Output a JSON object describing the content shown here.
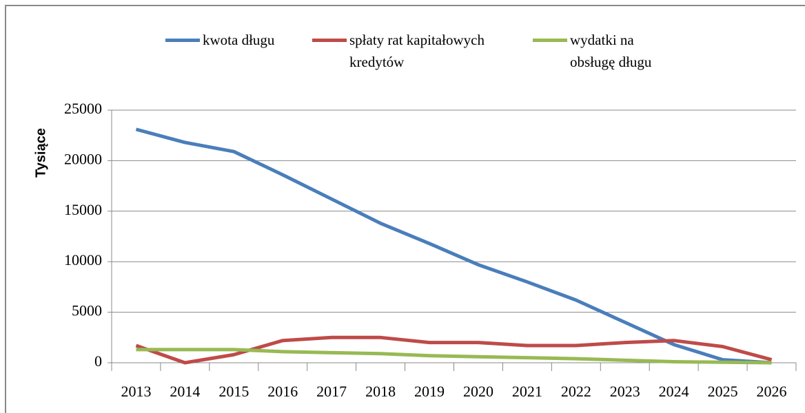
{
  "chart_data": {
    "type": "line",
    "y_label": "Tysiące",
    "categories": [
      "2013",
      "2014",
      "2015",
      "2016",
      "2017",
      "2018",
      "2019",
      "2020",
      "2021",
      "2022",
      "2023",
      "2024",
      "2025",
      "2026"
    ],
    "series": [
      {
        "name": "kwota długu",
        "color": "#4a7ebb",
        "values": [
          23100,
          21800,
          20900,
          18600,
          16200,
          13800,
          11800,
          9700,
          8000,
          6200,
          4000,
          1800,
          300,
          0
        ]
      },
      {
        "name": "spłaty rat kapitałowych kredytów",
        "color": "#be4b48",
        "values": [
          1700,
          0,
          800,
          2200,
          2500,
          2500,
          2000,
          2000,
          1700,
          1700,
          2000,
          2200,
          1600,
          300
        ]
      },
      {
        "name": "wydatki na obsługę długu",
        "color": "#98b954",
        "values": [
          1300,
          1300,
          1300,
          1100,
          1000,
          900,
          700,
          600,
          500,
          400,
          250,
          100,
          50,
          0
        ]
      }
    ],
    "ylim": [
      0,
      25000
    ],
    "yticks": [
      0,
      5000,
      10000,
      15000,
      20000,
      25000
    ],
    "grid": true
  }
}
